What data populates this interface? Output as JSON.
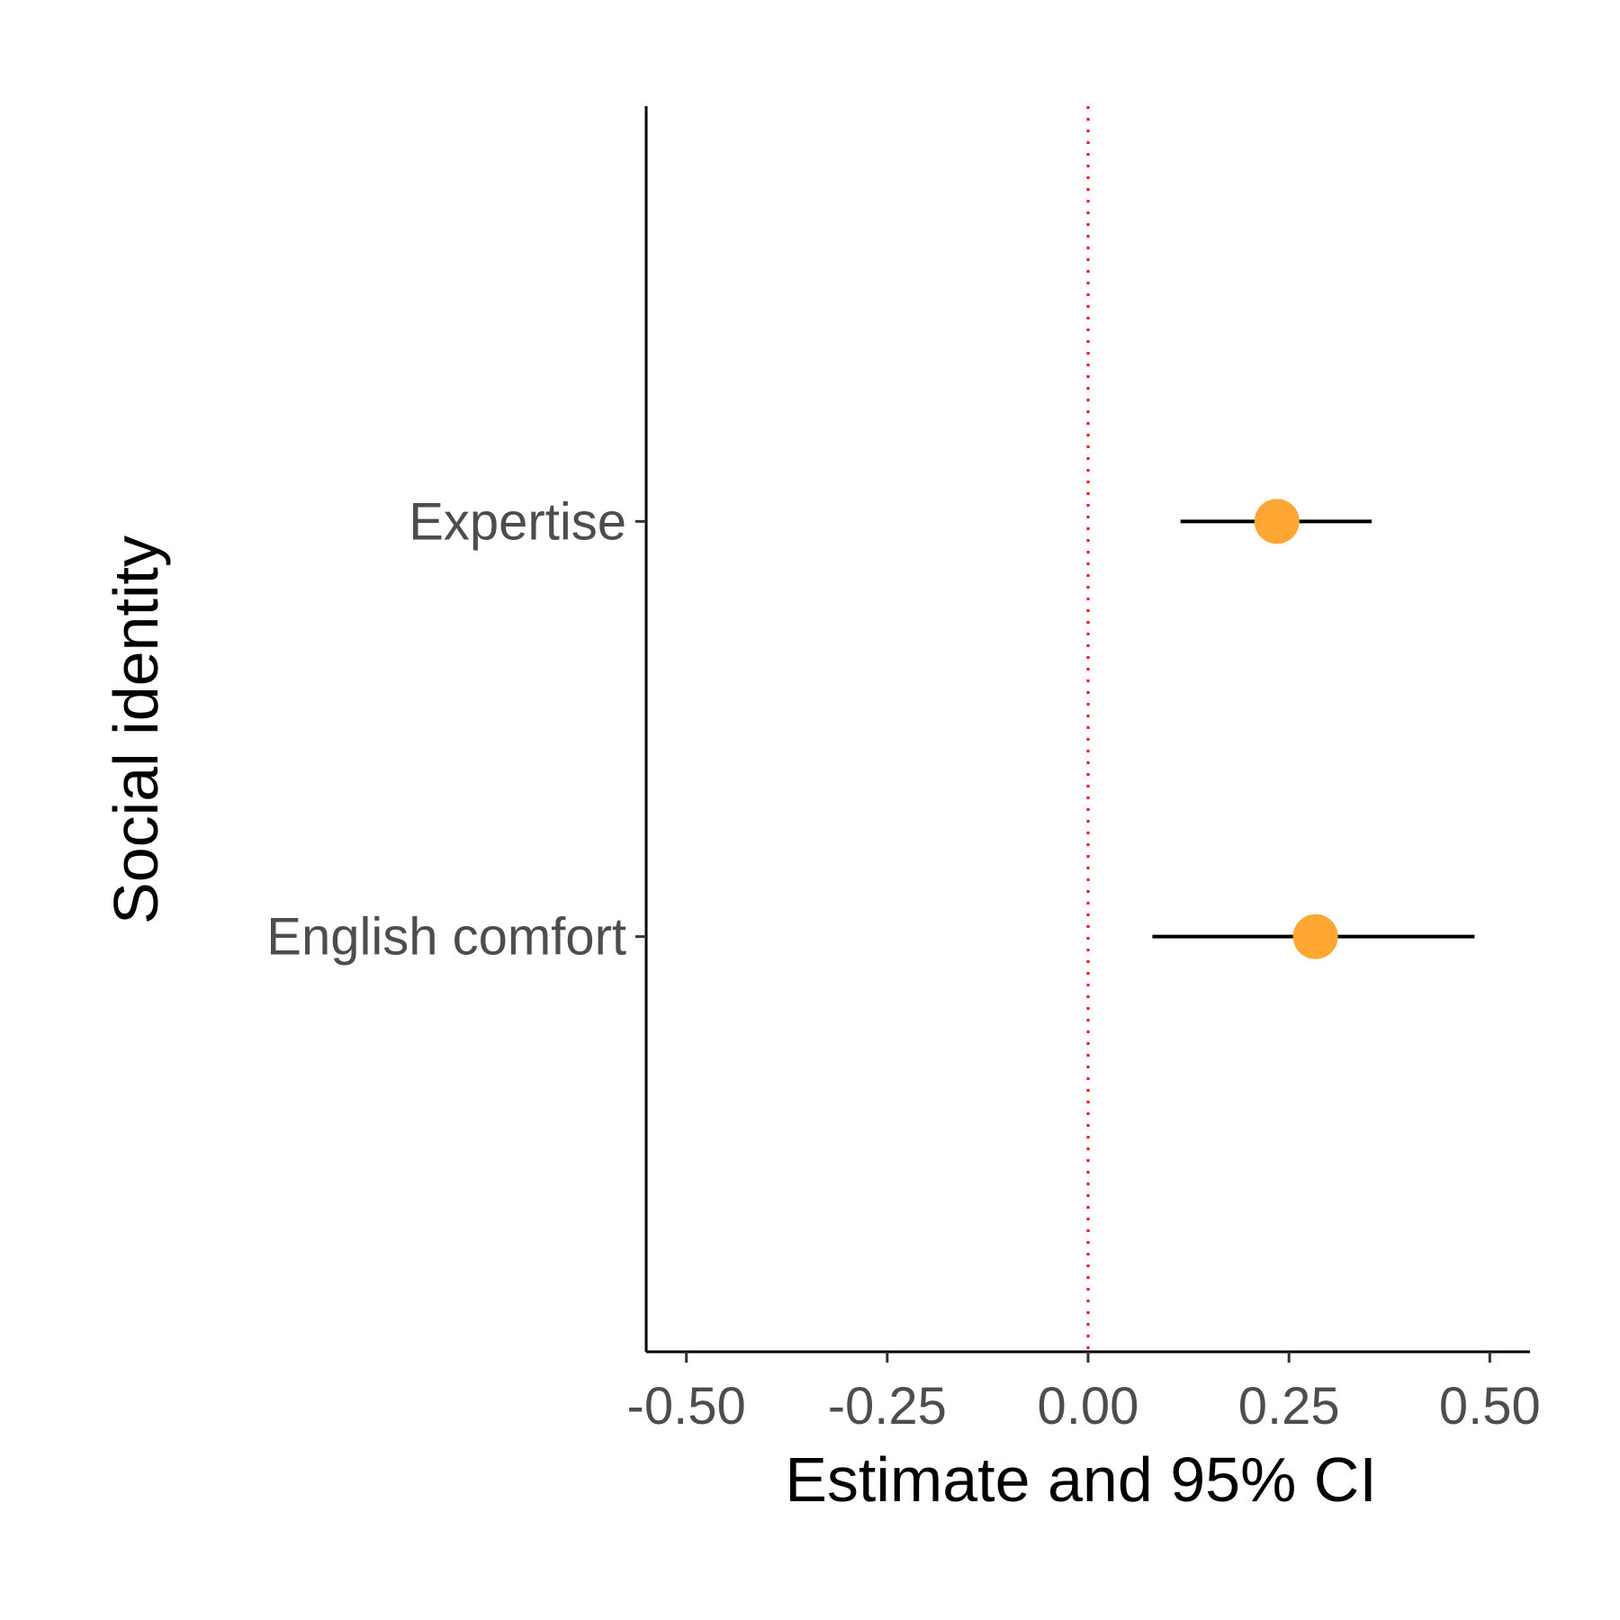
{
  "chart_data": {
    "type": "forest",
    "xlabel": "Estimate and 95% CI",
    "ylabel": "Social identity",
    "xlim": [
      -0.55,
      0.55
    ],
    "xticks": [
      -0.5,
      -0.25,
      0.0,
      0.25,
      0.5
    ],
    "xtick_labels": [
      "-0.50",
      "-0.25",
      "0.00",
      "0.25",
      "0.50"
    ],
    "reference_line": {
      "x": 0,
      "style": "dotted",
      "color": "#ff0000"
    },
    "categories": [
      "Expertise",
      "English comfort"
    ],
    "estimates": [
      0.235,
      0.283
    ],
    "ci_low": [
      0.115,
      0.08
    ],
    "ci_high": [
      0.353,
      0.481
    ],
    "point_color": "#ffa733",
    "grid": false
  }
}
